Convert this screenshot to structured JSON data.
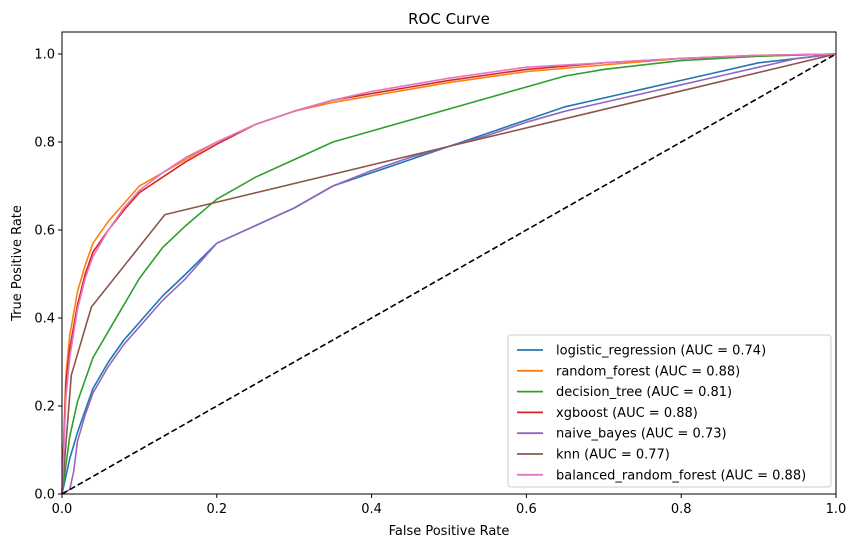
{
  "chart_data": {
    "type": "line",
    "title": "ROC Curve",
    "xlabel": "False Positive Rate",
    "ylabel": "True Positive Rate",
    "xlim": [
      0.0,
      1.0
    ],
    "ylim": [
      0.0,
      1.05
    ],
    "xticks": [
      "0.0",
      "0.2",
      "0.4",
      "0.6",
      "0.8",
      "1.0"
    ],
    "yticks": [
      "0.0",
      "0.2",
      "0.4",
      "0.6",
      "0.8",
      "1.0"
    ],
    "grid": false,
    "legend_position": "lower-right",
    "series": [
      {
        "name": "logistic_regression (AUC = 0.74)",
        "color": "#1f77b4",
        "x": [
          0,
          0.01,
          0.02,
          0.03,
          0.04,
          0.06,
          0.08,
          0.1,
          0.13,
          0.16,
          0.2,
          0.25,
          0.3,
          0.35,
          0.4,
          0.45,
          0.5,
          0.55,
          0.6,
          0.65,
          0.7,
          0.75,
          0.8,
          0.85,
          0.9,
          0.95,
          1.0
        ],
        "y": [
          0,
          0.08,
          0.14,
          0.19,
          0.24,
          0.3,
          0.35,
          0.39,
          0.45,
          0.5,
          0.57,
          0.61,
          0.65,
          0.7,
          0.73,
          0.76,
          0.79,
          0.82,
          0.85,
          0.88,
          0.9,
          0.92,
          0.94,
          0.96,
          0.98,
          0.99,
          1.0
        ]
      },
      {
        "name": "random_forest (AUC = 0.88)",
        "color": "#ff7f0e",
        "x": [
          0,
          0.005,
          0.01,
          0.02,
          0.03,
          0.04,
          0.06,
          0.08,
          0.1,
          0.13,
          0.16,
          0.2,
          0.25,
          0.3,
          0.35,
          0.4,
          0.45,
          0.5,
          0.6,
          0.7,
          0.8,
          0.9,
          1.0
        ],
        "y": [
          0,
          0.27,
          0.36,
          0.46,
          0.52,
          0.57,
          0.62,
          0.66,
          0.7,
          0.73,
          0.76,
          0.8,
          0.84,
          0.87,
          0.89,
          0.905,
          0.92,
          0.935,
          0.96,
          0.975,
          0.99,
          0.995,
          1.0
        ]
      },
      {
        "name": "decision_tree (AUC = 0.81)",
        "color": "#2ca02c",
        "x": [
          0,
          0.01,
          0.02,
          0.04,
          0.06,
          0.08,
          0.1,
          0.13,
          0.16,
          0.2,
          0.25,
          0.3,
          0.35,
          0.4,
          0.45,
          0.5,
          0.55,
          0.6,
          0.65,
          0.7,
          0.8,
          0.9,
          1.0
        ],
        "y": [
          0,
          0.13,
          0.21,
          0.31,
          0.37,
          0.43,
          0.49,
          0.56,
          0.61,
          0.67,
          0.72,
          0.76,
          0.8,
          0.825,
          0.85,
          0.875,
          0.9,
          0.925,
          0.95,
          0.965,
          0.985,
          0.995,
          1.0
        ]
      },
      {
        "name": "xgboost (AUC = 0.88)",
        "color": "#d62728",
        "x": [
          0,
          0.005,
          0.01,
          0.02,
          0.03,
          0.04,
          0.06,
          0.08,
          0.1,
          0.13,
          0.16,
          0.2,
          0.25,
          0.3,
          0.35,
          0.4,
          0.45,
          0.5,
          0.6,
          0.7,
          0.8,
          0.9,
          1.0
        ],
        "y": [
          0,
          0.25,
          0.33,
          0.43,
          0.5,
          0.55,
          0.6,
          0.645,
          0.685,
          0.72,
          0.755,
          0.795,
          0.84,
          0.87,
          0.895,
          0.91,
          0.925,
          0.94,
          0.965,
          0.98,
          0.99,
          0.997,
          1.0
        ]
      },
      {
        "name": "naive_bayes (AUC = 0.73)",
        "color": "#9467bd",
        "x": [
          0,
          0.01,
          0.015,
          0.02,
          0.03,
          0.04,
          0.06,
          0.08,
          0.1,
          0.13,
          0.16,
          0.2,
          0.25,
          0.3,
          0.35,
          0.4,
          0.45,
          0.5,
          0.55,
          0.6,
          0.65,
          0.7,
          0.75,
          0.8,
          0.85,
          0.9,
          0.95,
          1.0
        ],
        "y": [
          0,
          0.01,
          0.05,
          0.12,
          0.18,
          0.23,
          0.29,
          0.34,
          0.38,
          0.44,
          0.49,
          0.57,
          0.61,
          0.65,
          0.7,
          0.735,
          0.765,
          0.79,
          0.815,
          0.845,
          0.87,
          0.89,
          0.91,
          0.93,
          0.95,
          0.97,
          0.99,
          1.0
        ]
      },
      {
        "name": "knn (AUC = 0.77)",
        "color": "#8c564b",
        "x": [
          0,
          0.012,
          0.038,
          0.133,
          0.5,
          1.0
        ],
        "y": [
          0,
          0.27,
          0.425,
          0.635,
          0.79,
          1.0
        ]
      },
      {
        "name": "balanced_random_forest (AUC = 0.88)",
        "color": "#e377c2",
        "x": [
          0,
          0.005,
          0.01,
          0.02,
          0.03,
          0.04,
          0.06,
          0.08,
          0.1,
          0.13,
          0.16,
          0.2,
          0.25,
          0.3,
          0.35,
          0.4,
          0.45,
          0.5,
          0.6,
          0.7,
          0.8,
          0.9,
          1.0
        ],
        "y": [
          0,
          0.22,
          0.31,
          0.42,
          0.49,
          0.54,
          0.6,
          0.65,
          0.69,
          0.73,
          0.765,
          0.8,
          0.84,
          0.87,
          0.895,
          0.915,
          0.93,
          0.945,
          0.97,
          0.98,
          0.99,
          0.997,
          1.0
        ]
      }
    ],
    "reference_line": {
      "style": "dashed",
      "color": "#000000",
      "x": [
        0,
        1
      ],
      "y": [
        0,
        1
      ]
    }
  }
}
